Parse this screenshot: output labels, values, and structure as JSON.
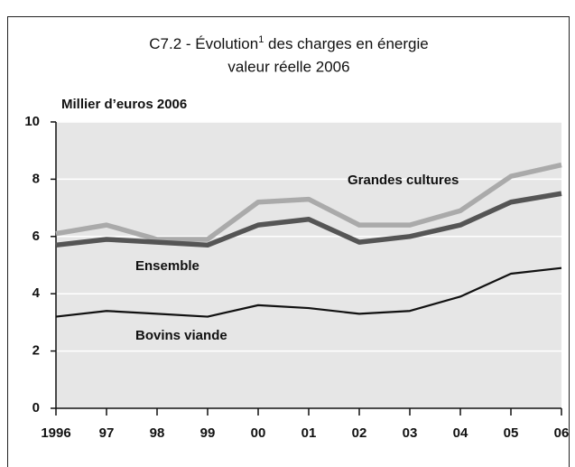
{
  "chart_data": {
    "type": "line",
    "title": "C7.2 - Évolution",
    "title_superscript": "1",
    "title_rest": " des charges en énergie",
    "subtitle": "valeur réelle 2006",
    "y_label": "Millier d’euros 2006",
    "categories": [
      "1996",
      "97",
      "98",
      "99",
      "00",
      "01",
      "02",
      "03",
      "04",
      "05",
      "06"
    ],
    "series": [
      {
        "name": "Grandes cultures",
        "color": "#aaaaaa",
        "values": [
          6.1,
          6.4,
          5.9,
          5.9,
          7.2,
          7.3,
          6.4,
          6.4,
          6.9,
          8.1,
          8.5
        ]
      },
      {
        "name": "Ensemble",
        "color": "#555555",
        "values": [
          5.7,
          5.9,
          5.8,
          5.7,
          6.4,
          6.6,
          5.8,
          6.0,
          6.4,
          7.2,
          7.5
        ]
      },
      {
        "name": "Bovins viande",
        "color": "#111111",
        "values": [
          3.2,
          3.4,
          3.3,
          3.2,
          3.6,
          3.5,
          3.3,
          3.4,
          3.9,
          4.7,
          4.9
        ]
      }
    ],
    "ylim": [
      0,
      10
    ],
    "yticks": [
      0,
      2,
      4,
      6,
      8,
      10
    ],
    "grid": true
  }
}
